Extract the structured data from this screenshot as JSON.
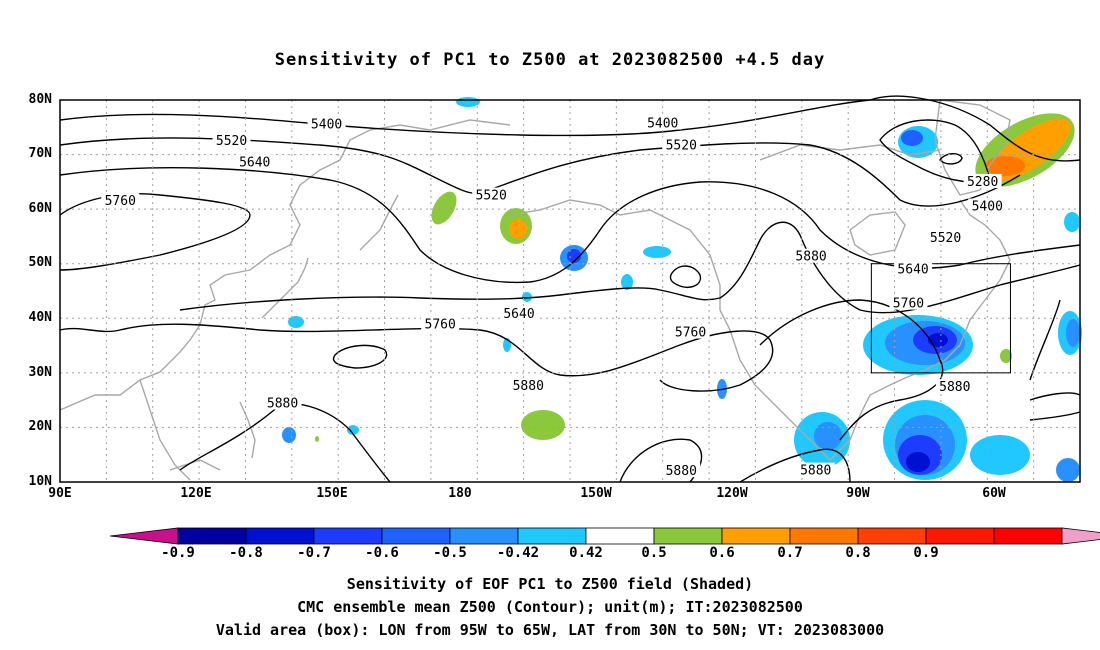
{
  "title": "Sensitivity of PC1 to Z500 at 2023082500 +4.5 day",
  "lat_labels": [
    "80N",
    "70N",
    "60N",
    "50N",
    "40N",
    "30N",
    "20N",
    "10N"
  ],
  "lon_labels": [
    "90E",
    "120E",
    "150E",
    "180",
    "150W",
    "120W",
    "90W",
    "60W"
  ],
  "contour_levels": [
    "5280",
    "5400",
    "5520",
    "5640",
    "5760",
    "5880"
  ],
  "contour_labels": [
    {
      "text": "5400",
      "lon": -140,
      "lat": 75.5
    },
    {
      "text": "5400",
      "lon": 147.5,
      "lat": 75.3
    },
    {
      "text": "5520",
      "lon": 127,
      "lat": 72.3
    },
    {
      "text": "5640",
      "lon": 132,
      "lat": 68.4
    },
    {
      "text": "5760",
      "lon": 103,
      "lat": 61.3
    },
    {
      "text": "5520",
      "lon": -136,
      "lat": 71.5
    },
    {
      "text": "5520",
      "lon": -177,
      "lat": 62.3
    },
    {
      "text": "5640",
      "lon": -171,
      "lat": 40.6
    },
    {
      "text": "5760",
      "lon": 172,
      "lat": 38.7
    },
    {
      "text": "5760",
      "lon": -134,
      "lat": 37.2
    },
    {
      "text": "5880",
      "lon": -108,
      "lat": 51.1
    },
    {
      "text": "5280",
      "lon": -71,
      "lat": 64.8
    },
    {
      "text": "5400",
      "lon": -70,
      "lat": 60.3
    },
    {
      "text": "5520",
      "lon": -79,
      "lat": 54.5
    },
    {
      "text": "5640",
      "lon": -86,
      "lat": 48.8
    },
    {
      "text": "5760",
      "lon": -87,
      "lat": 42.5
    },
    {
      "text": "5880",
      "lon": -77,
      "lat": 27.2
    },
    {
      "text": "5880",
      "lon": -169,
      "lat": 27.4
    },
    {
      "text": "5880",
      "lon": 138,
      "lat": 24.2
    },
    {
      "text": "5880",
      "lon": -136,
      "lat": 11.8
    },
    {
      "text": "5880",
      "lon": -107,
      "lat": 11.9
    }
  ],
  "valid_box": {
    "lon_west": -95,
    "lon_east": -65,
    "lat_south": 30,
    "lat_north": 50
  },
  "colorbar": {
    "labels": [
      "-0.9",
      "-0.8",
      "-0.7",
      "-0.6",
      "-0.5",
      "-0.42",
      "0.42",
      "0.5",
      "0.6",
      "0.7",
      "0.8",
      "0.9"
    ],
    "colors": [
      "#c8108c",
      "#0000a0",
      "#0010d0",
      "#1e3cff",
      "#2060ff",
      "#2890ff",
      "#20c8ff",
      "#ffffff",
      "#8cc83c",
      "#ffa000",
      "#ff7800",
      "#ff4000",
      "#ff1800",
      "#ff0000",
      "#f0a0c8"
    ]
  },
  "caption_lines": [
    "Sensitivity of EOF PC1 to Z500 field (Shaded)",
    "CMC ensemble mean Z500 (Contour); unit(m); IT:2023082500",
    "Valid area (box): LON from 95W to 65W, LAT from 30N to 50N; VT: 2023083000"
  ]
}
